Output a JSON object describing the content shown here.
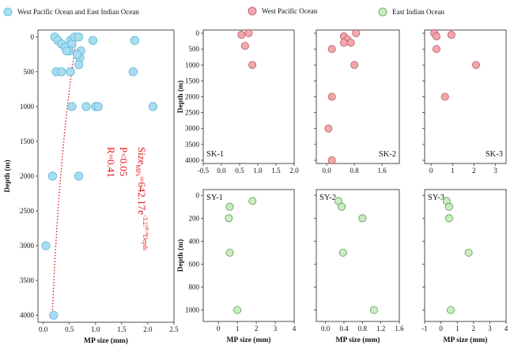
{
  "legend": [
    {
      "label": "West Pacific Ocean and East Indian Ocean",
      "color": "#a8dcf0",
      "stroke": "#5fb8d8"
    },
    {
      "label": "West Pacific Ocean",
      "color": "#f2a7ad",
      "stroke": "#b55a64"
    },
    {
      "label": "East Indian Ocean",
      "color": "#c9ecc0",
      "stroke": "#5f9a58"
    }
  ],
  "annotation": {
    "equation_main": "Size",
    "equation_sub": "MPs",
    "equation_rest": "=642.17e",
    "equation_exp": "-3.27",
    "equation_exp2": "E-4",
    "equation_depth": "Depth",
    "p_value": "P<0.05",
    "r_value": "R=0.41"
  },
  "chart_data": [
    {
      "type": "scatter",
      "name": "main",
      "xlabel": "MP size (mm)",
      "ylabel": "Depth (m)",
      "xlim": [
        -0.1,
        2.5
      ],
      "ylim": [
        4100,
        -100
      ],
      "xticks": [
        0.0,
        0.5,
        1.0,
        1.5,
        2.0,
        2.5
      ],
      "xticklabels": [
        "0.0",
        "0.5",
        "1.0",
        "1.5",
        "2.0",
        "2.5"
      ],
      "yticks": [
        0,
        500,
        1000,
        1500,
        2000,
        2500,
        3000,
        3500,
        4000
      ],
      "yticklabels": [
        "0",
        "500",
        "1000",
        "1500",
        "2000",
        "2500",
        "3000",
        "3500",
        "4000"
      ],
      "series": [
        {
          "color": "#a8dcf0",
          "points": [
            [
              0.22,
              0
            ],
            [
              0.28,
              50
            ],
            [
              0.35,
              100
            ],
            [
              0.42,
              150
            ],
            [
              0.52,
              50
            ],
            [
              0.55,
              100
            ],
            [
              0.6,
              0
            ],
            [
              0.68,
              0
            ],
            [
              0.72,
              200
            ],
            [
              0.7,
              300
            ],
            [
              0.65,
              250
            ],
            [
              0.5,
              200
            ],
            [
              0.45,
              200
            ],
            [
              0.68,
              400
            ],
            [
              0.95,
              50
            ],
            [
              1.75,
              50
            ],
            [
              0.52,
              500
            ],
            [
              0.25,
              500
            ],
            [
              0.35,
              500
            ],
            [
              1.72,
              500
            ],
            [
              0.55,
              1000
            ],
            [
              0.82,
              1000
            ],
            [
              1.0,
              1000
            ],
            [
              1.05,
              1000
            ],
            [
              2.1,
              1000
            ],
            [
              0.18,
              2000
            ],
            [
              0.68,
              2000
            ],
            [
              0.05,
              3000
            ],
            [
              0.2,
              4000
            ]
          ]
        }
      ],
      "fit": {
        "function": "Size = 642.17 e^(-3.27E-4 Depth)",
        "from_depth": 0,
        "to_depth": 4000
      }
    },
    {
      "type": "scatter",
      "name": "SK-1",
      "ylabel": "Depth (m)",
      "xlim": [
        -0.5,
        2.0
      ],
      "ylim": [
        4100,
        -100
      ],
      "xticks": [
        -0.5,
        0.0,
        0.5,
        1.0,
        1.5,
        2.0
      ],
      "xticklabels": [
        "-0.5",
        "0.0",
        "0.5",
        "1.0",
        "1.5",
        "2.0"
      ],
      "yticks": [
        0,
        500,
        1000,
        1500,
        2000,
        2500,
        3000,
        3500,
        4000
      ],
      "yticklabels": [
        "0",
        "500",
        "1000",
        "1500",
        "2000",
        "2500",
        "3000",
        "3500",
        "4000"
      ],
      "series": [
        {
          "color": "#f2a7ad",
          "points": [
            [
              0.55,
              50
            ],
            [
              0.75,
              0
            ],
            [
              0.65,
              400
            ],
            [
              0.85,
              1000
            ]
          ]
        }
      ]
    },
    {
      "type": "scatter",
      "name": "SK-2",
      "xlim": [
        -0.3,
        2.1
      ],
      "ylim": [
        4100,
        -100
      ],
      "xticks": [
        0.0,
        0.8,
        1.6
      ],
      "xticklabels": [
        "0.0",
        "0.8",
        "1.6"
      ],
      "yticks": [
        0,
        500,
        1000,
        1500,
        2000,
        2500,
        3000,
        3500,
        4000
      ],
      "yticklabels": [],
      "series": [
        {
          "color": "#f2a7ad",
          "points": [
            [
              0.15,
              500
            ],
            [
              0.5,
              100
            ],
            [
              0.6,
              200
            ],
            [
              0.5,
              300
            ],
            [
              0.85,
              0
            ],
            [
              0.7,
              300
            ],
            [
              0.8,
              1000
            ],
            [
              0.15,
              2000
            ],
            [
              0.05,
              3000
            ],
            [
              0.15,
              4000
            ]
          ]
        }
      ]
    },
    {
      "type": "scatter",
      "name": "SK-3",
      "xlim": [
        -0.3,
        3.5
      ],
      "ylim": [
        4100,
        -100
      ],
      "xticks": [
        0,
        1,
        2,
        3
      ],
      "xticklabels": [
        "0",
        "1",
        "2",
        "3"
      ],
      "yticks": [
        0,
        500,
        1000,
        1500,
        2000,
        2500,
        3000,
        3500,
        4000
      ],
      "yticklabels": [],
      "series": [
        {
          "color": "#f2a7ad",
          "points": [
            [
              0.15,
              0
            ],
            [
              0.25,
              100
            ],
            [
              0.95,
              50
            ],
            [
              0.25,
              500
            ],
            [
              2.1,
              1000
            ],
            [
              0.65,
              2000
            ]
          ]
        }
      ]
    },
    {
      "type": "scatter",
      "name": "SY-1",
      "xlabel": "MP size (mm)",
      "ylabel": "Depth (m)",
      "xlim": [
        -0.8,
        4.0
      ],
      "ylim": [
        1100,
        -50
      ],
      "xticks": [
        0,
        1,
        2,
        3,
        4
      ],
      "xticklabels": [
        "0",
        "1",
        "2",
        "3",
        "4"
      ],
      "yticks": [
        0,
        200,
        400,
        600,
        800,
        1000
      ],
      "yticklabels": [
        "0",
        "200",
        "400",
        "600",
        "800",
        "1000"
      ],
      "series": [
        {
          "color": "#c9ecc0",
          "points": [
            [
              1.8,
              50
            ],
            [
              0.6,
              100
            ],
            [
              0.55,
              200
            ],
            [
              0.6,
              500
            ],
            [
              1.0,
              1000
            ]
          ]
        }
      ]
    },
    {
      "type": "scatter",
      "name": "SY-2",
      "xlabel": "MP size (mm)",
      "xlim": [
        -0.2,
        1.6
      ],
      "ylim": [
        1100,
        -50
      ],
      "xticks": [
        0.0,
        0.4,
        0.8,
        1.2,
        1.6
      ],
      "xticklabels": [
        "0.0",
        "0.4",
        "0.8",
        "1.2",
        "1.6"
      ],
      "yticks": [
        0,
        200,
        400,
        600,
        800,
        1000
      ],
      "yticklabels": [],
      "series": [
        {
          "color": "#c9ecc0",
          "points": [
            [
              0.28,
              50
            ],
            [
              0.35,
              100
            ],
            [
              0.8,
              200
            ],
            [
              0.38,
              500
            ],
            [
              1.05,
              1000
            ]
          ]
        }
      ]
    },
    {
      "type": "scatter",
      "name": "SY-3",
      "xlabel": "MP size (mm)",
      "xlim": [
        -1.0,
        4.0
      ],
      "ylim": [
        1100,
        -50
      ],
      "xticks": [
        -1,
        0,
        1,
        2,
        3,
        4
      ],
      "xticklabels": [
        "-1",
        "0",
        "1",
        "2",
        "3",
        "4"
      ],
      "yticks": [
        0,
        200,
        400,
        600,
        800,
        1000
      ],
      "yticklabels": [],
      "series": [
        {
          "color": "#c9ecc0",
          "points": [
            [
              0.35,
              50
            ],
            [
              0.5,
              100
            ],
            [
              0.5,
              200
            ],
            [
              1.7,
              500
            ],
            [
              0.6,
              1000
            ]
          ]
        }
      ]
    }
  ]
}
